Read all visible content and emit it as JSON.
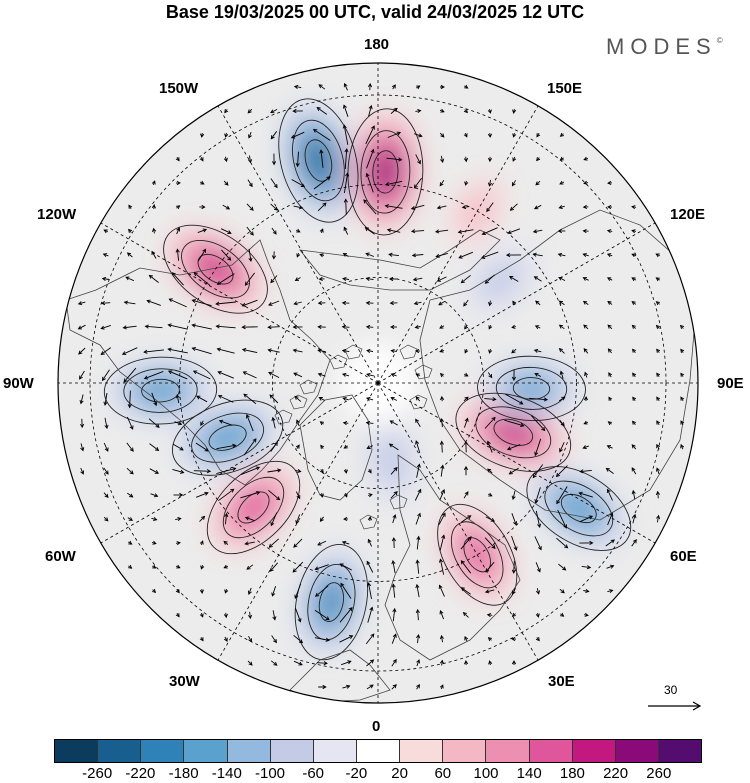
{
  "title": "Base 19/03/2025 00 UTC, valid 24/03/2025 12 UTC",
  "logo": {
    "text": "MODES",
    "mark": "©"
  },
  "longitude_labels": {
    "top": "180",
    "bottom": "0",
    "left": "90W",
    "right": "90E",
    "upper_left_1": "150W",
    "upper_left_2": "120W",
    "lower_left_1": "60W",
    "lower_left_2": "30W",
    "upper_right_1": "150E",
    "upper_right_2": "120E",
    "lower_right_1": "60E",
    "lower_right_2": "30E"
  },
  "reference_vector": {
    "label": "30"
  },
  "colorbar": {
    "colors": [
      "#0b3c5d",
      "#185f8f",
      "#2f82b8",
      "#5ba1cd",
      "#94b9de",
      "#c3cbe6",
      "#e6e6f2",
      "#ffffff",
      "#f8dcdc",
      "#f3b8c3",
      "#ec8fb0",
      "#e0569c",
      "#c21880",
      "#8a0a7a",
      "#540d6e"
    ],
    "tick_labels": [
      "-260",
      "-220",
      "-180",
      "-140",
      "-100",
      "-60",
      "-20",
      "20",
      "60",
      "100",
      "140",
      "180",
      "220",
      "260"
    ]
  },
  "anomaly_cells": [
    {
      "lon": -165,
      "r": 0.72,
      "value": -220
    },
    {
      "lon": 178,
      "r": 0.66,
      "value": 220
    },
    {
      "lon": -125,
      "r": 0.62,
      "value": 180
    },
    {
      "lon": -88,
      "r": 0.68,
      "value": -160
    },
    {
      "lon": -70,
      "r": 0.5,
      "value": -170
    },
    {
      "lon": -45,
      "r": 0.55,
      "value": 160
    },
    {
      "lon": -12,
      "r": 0.7,
      "value": -180
    },
    {
      "lon": 10,
      "r": 0.25,
      "value": -90
    },
    {
      "lon": 30,
      "r": 0.62,
      "value": 150
    },
    {
      "lon": 58,
      "r": 0.74,
      "value": -170
    },
    {
      "lon": 70,
      "r": 0.45,
      "value": 190
    },
    {
      "lon": 88,
      "r": 0.48,
      "value": -140
    },
    {
      "lon": 130,
      "r": 0.5,
      "value": -80
    },
    {
      "lon": 150,
      "r": 0.62,
      "value": 60
    }
  ]
}
